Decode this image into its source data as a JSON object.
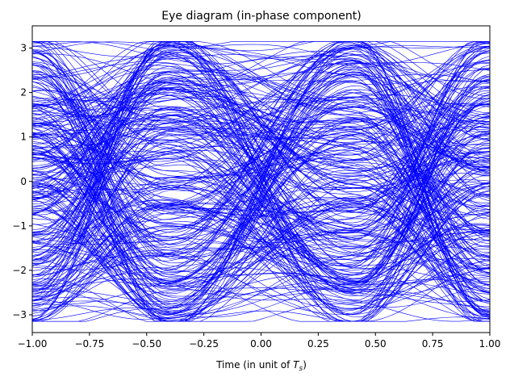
{
  "chart_data": {
    "type": "line",
    "title": "Eye diagram (in-phase component)",
    "xlabel_prefix": "Time (in unit of ",
    "xlabel_symbol": "T",
    "xlabel_subscript": "s",
    "xlabel_suffix": ")",
    "ylabel": "",
    "xlim": [
      -1.0,
      1.0
    ],
    "ylim": [
      -3.4,
      3.5
    ],
    "grid": false,
    "legend": "none",
    "trace_color": "#0000ff",
    "x_ticks": [
      -1.0,
      -0.75,
      -0.5,
      -0.25,
      0.0,
      0.25,
      0.5,
      0.75,
      1.0
    ],
    "x_tick_labels": [
      "−1.00",
      "−0.75",
      "−0.50",
      "−0.25",
      "0.00",
      "0.25",
      "0.50",
      "0.75",
      "1.00"
    ],
    "y_ticks": [
      -3,
      -2,
      -1,
      0,
      1,
      2,
      3
    ],
    "y_tick_labels": [
      "−3",
      "−2",
      "−1",
      "0",
      "1",
      "2",
      "3"
    ],
    "series_description": "many overlaid symbol traces (approx. 300), symbol levels in [-3, 3]; open eye near x = -0.4 and x = 0.4, zero crossings near x = -0.85, 0, 0.85",
    "trace_count": 300,
    "symbol_levels": [
      -3,
      -2.4,
      -1.8,
      -1.2,
      -0.6,
      0,
      0.6,
      1.2,
      1.8,
      2.4,
      3
    ]
  }
}
